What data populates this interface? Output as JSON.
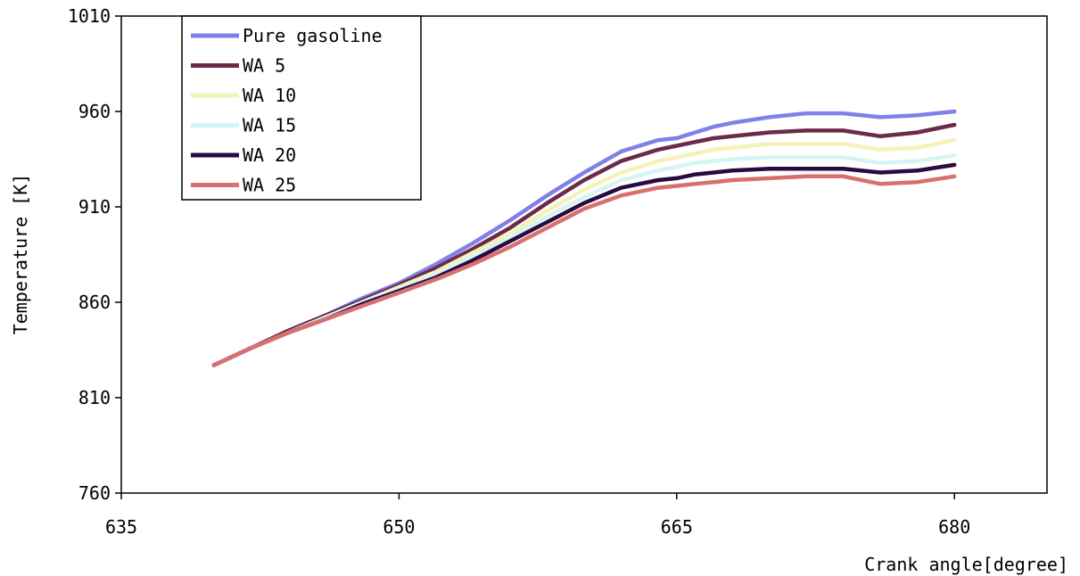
{
  "chart_data": {
    "type": "line",
    "xlabel": "Crank angle[degree]",
    "ylabel": "Temperature [K]",
    "xlim": [
      635,
      685
    ],
    "ylim": [
      760,
      1010
    ],
    "x_ticks": [
      635,
      650,
      665,
      680
    ],
    "y_ticks": [
      760,
      810,
      860,
      910,
      960,
      1010
    ],
    "grid": false,
    "legend_position": "top-left",
    "series": [
      {
        "name": "Pure gasoline",
        "color": "#8080e8",
        "points": [
          [
            640,
            827
          ],
          [
            642,
            836
          ],
          [
            644,
            845
          ],
          [
            646,
            853
          ],
          [
            648,
            862
          ],
          [
            650,
            870
          ],
          [
            652,
            880
          ],
          [
            654,
            891
          ],
          [
            656,
            903
          ],
          [
            658,
            916
          ],
          [
            660,
            928
          ],
          [
            662,
            939
          ],
          [
            664,
            945
          ],
          [
            665,
            946
          ],
          [
            666,
            949
          ],
          [
            667,
            952
          ],
          [
            668,
            954
          ],
          [
            670,
            957
          ],
          [
            672,
            959
          ],
          [
            674,
            959
          ],
          [
            676,
            957
          ],
          [
            678,
            958
          ],
          [
            680,
            960
          ]
        ]
      },
      {
        "name": "WA 5",
        "color": "#6b2a4a",
        "points": [
          [
            640,
            827
          ],
          [
            642,
            836
          ],
          [
            644,
            845
          ],
          [
            646,
            853
          ],
          [
            648,
            861
          ],
          [
            650,
            869
          ],
          [
            652,
            878
          ],
          [
            654,
            888
          ],
          [
            656,
            899
          ],
          [
            658,
            912
          ],
          [
            660,
            924
          ],
          [
            662,
            934
          ],
          [
            664,
            940
          ],
          [
            665,
            942
          ],
          [
            666,
            944
          ],
          [
            667,
            946
          ],
          [
            668,
            947
          ],
          [
            670,
            949
          ],
          [
            672,
            950
          ],
          [
            674,
            950
          ],
          [
            676,
            947
          ],
          [
            678,
            949
          ],
          [
            680,
            953
          ]
        ]
      },
      {
        "name": "WA 10",
        "color": "#f5f2b8",
        "points": [
          [
            640,
            827
          ],
          [
            642,
            836
          ],
          [
            644,
            844
          ],
          [
            646,
            852
          ],
          [
            648,
            860
          ],
          [
            650,
            868
          ],
          [
            652,
            876
          ],
          [
            654,
            886
          ],
          [
            656,
            896
          ],
          [
            658,
            908
          ],
          [
            660,
            919
          ],
          [
            662,
            928
          ],
          [
            664,
            934
          ],
          [
            665,
            936
          ],
          [
            666,
            938
          ],
          [
            667,
            940
          ],
          [
            668,
            941
          ],
          [
            670,
            943
          ],
          [
            672,
            943
          ],
          [
            674,
            943
          ],
          [
            676,
            940
          ],
          [
            678,
            941
          ],
          [
            680,
            945
          ]
        ]
      },
      {
        "name": "WA 15",
        "color": "#d5f5f5",
        "points": [
          [
            640,
            827
          ],
          [
            642,
            836
          ],
          [
            644,
            844
          ],
          [
            646,
            852
          ],
          [
            648,
            860
          ],
          [
            650,
            867
          ],
          [
            652,
            875
          ],
          [
            654,
            884
          ],
          [
            656,
            894
          ],
          [
            658,
            905
          ],
          [
            660,
            915
          ],
          [
            662,
            924
          ],
          [
            664,
            929
          ],
          [
            665,
            931
          ],
          [
            666,
            933
          ],
          [
            667,
            934
          ],
          [
            668,
            935
          ],
          [
            670,
            936
          ],
          [
            672,
            936
          ],
          [
            674,
            936
          ],
          [
            676,
            933
          ],
          [
            678,
            934
          ],
          [
            680,
            937
          ]
        ]
      },
      {
        "name": "WA 20",
        "color": "#2a0a40",
        "points": [
          [
            640,
            827
          ],
          [
            642,
            836
          ],
          [
            644,
            844
          ],
          [
            646,
            851
          ],
          [
            648,
            859
          ],
          [
            650,
            866
          ],
          [
            652,
            873
          ],
          [
            654,
            882
          ],
          [
            656,
            892
          ],
          [
            658,
            902
          ],
          [
            660,
            912
          ],
          [
            662,
            920
          ],
          [
            664,
            924
          ],
          [
            665,
            925
          ],
          [
            666,
            927
          ],
          [
            667,
            928
          ],
          [
            668,
            929
          ],
          [
            670,
            930
          ],
          [
            672,
            930
          ],
          [
            674,
            930
          ],
          [
            676,
            928
          ],
          [
            678,
            929
          ],
          [
            680,
            932
          ]
        ]
      },
      {
        "name": "WA 25",
        "color": "#d87070",
        "points": [
          [
            640,
            827
          ],
          [
            642,
            836
          ],
          [
            644,
            844
          ],
          [
            646,
            851
          ],
          [
            648,
            858
          ],
          [
            650,
            865
          ],
          [
            652,
            872
          ],
          [
            654,
            880
          ],
          [
            656,
            889
          ],
          [
            658,
            899
          ],
          [
            660,
            909
          ],
          [
            662,
            916
          ],
          [
            664,
            920
          ],
          [
            665,
            921
          ],
          [
            666,
            922
          ],
          [
            667,
            923
          ],
          [
            668,
            924
          ],
          [
            670,
            925
          ],
          [
            672,
            926
          ],
          [
            674,
            926
          ],
          [
            676,
            922
          ],
          [
            678,
            923
          ],
          [
            680,
            926
          ]
        ]
      }
    ]
  }
}
